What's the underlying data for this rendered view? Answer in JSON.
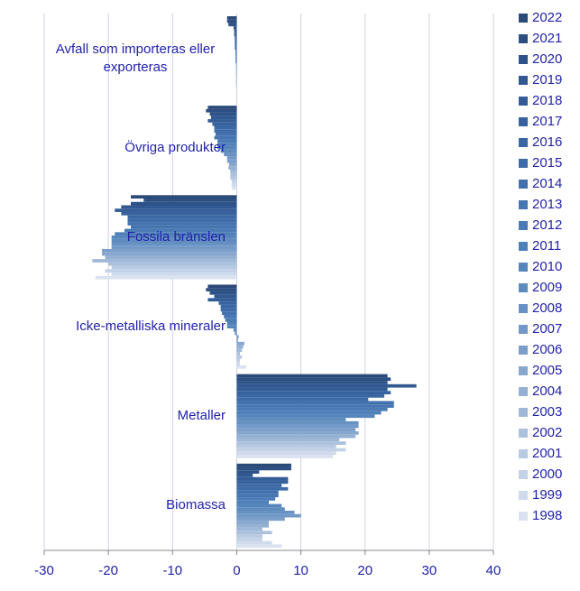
{
  "chart_data": {
    "type": "bar",
    "orientation": "horizontal",
    "categories": [
      "Avfall som importeras eller exporteras",
      "Övriga produkter",
      "Fossila bränslen",
      "Icke-metalliska mineraler",
      "Metaller",
      "Biomassa"
    ],
    "xlim": [
      -30,
      40
    ],
    "xticks": [
      -30,
      -20,
      -10,
      0,
      10,
      20,
      30,
      40
    ],
    "grid": true,
    "legend": "right",
    "series": [
      {
        "name": "2022",
        "color": "#2a4a78",
        "values": [
          -1.5,
          -4.5,
          -16.5,
          -4.5,
          23.5,
          8.5
        ]
      },
      {
        "name": "2021",
        "color": "#2c4e80",
        "values": [
          -1.5,
          -4.8,
          -14.5,
          -4.8,
          24,
          8.5
        ]
      },
      {
        "name": "2020",
        "color": "#2e5388",
        "values": [
          -1.3,
          -4.2,
          -16.5,
          -4.2,
          23.5,
          3.5
        ]
      },
      {
        "name": "2019",
        "color": "#315890",
        "values": [
          -0.5,
          -4,
          -18,
          -3.5,
          28,
          2.5
        ]
      },
      {
        "name": "2018",
        "color": "#345d97",
        "values": [
          -0.4,
          -4.5,
          -19,
          -4.5,
          23.5,
          8
        ]
      },
      {
        "name": "2017",
        "color": "#37629d",
        "values": [
          -0.4,
          -3.8,
          -18,
          -2.8,
          24,
          8
        ]
      },
      {
        "name": "2016",
        "color": "#3b67a3",
        "values": [
          -0.3,
          -3.5,
          -17,
          -2.5,
          23,
          7
        ]
      },
      {
        "name": "2015",
        "color": "#3e6ca8",
        "values": [
          -0.3,
          -3.5,
          -17,
          -2.5,
          20.5,
          8
        ]
      },
      {
        "name": "2014",
        "color": "#4271ad",
        "values": [
          -0.3,
          -3.3,
          -17,
          -2.3,
          24.5,
          6.5
        ]
      },
      {
        "name": "2013",
        "color": "#4676b1",
        "values": [
          -0.3,
          -3.5,
          -16.5,
          -2,
          24.5,
          6.5
        ]
      },
      {
        "name": "2012",
        "color": "#4b7bb5",
        "values": [
          -0.2,
          -3,
          -17.5,
          -1.8,
          23.5,
          6
        ]
      },
      {
        "name": "2011",
        "color": "#5080b8",
        "values": [
          -0.2,
          -3,
          -19,
          -1.5,
          22.5,
          5
        ]
      },
      {
        "name": "2010",
        "color": "#5685bb",
        "values": [
          -0.2,
          -3,
          -19.5,
          -1.5,
          21.5,
          7
        ]
      },
      {
        "name": "2009",
        "color": "#5e8bbe",
        "values": [
          -0.2,
          -2.5,
          -19.5,
          -0.5,
          17,
          7.5
        ]
      },
      {
        "name": "2008",
        "color": "#6791c2",
        "values": [
          -0.1,
          -2,
          -19.5,
          -0.3,
          19,
          9
        ]
      },
      {
        "name": "2007",
        "color": "#7198c6",
        "values": [
          -0.1,
          -1.5,
          -19.5,
          0.3,
          19,
          10
        ]
      },
      {
        "name": "2006",
        "color": "#7c9fca",
        "values": [
          -0.1,
          -1.5,
          -21,
          0.2,
          18.5,
          7.5
        ]
      },
      {
        "name": "2005",
        "color": "#88a7ce",
        "values": [
          -0.1,
          -1.2,
          -21,
          1.2,
          19,
          5
        ]
      },
      {
        "name": "2004",
        "color": "#94b0d3",
        "values": [
          -0.1,
          -1.3,
          -20.5,
          1,
          18.5,
          5
        ]
      },
      {
        "name": "2003",
        "color": "#a0b8d8",
        "values": [
          -0.1,
          -1,
          -22.5,
          0.8,
          16,
          4
        ]
      },
      {
        "name": "2002",
        "color": "#acc1dd",
        "values": [
          -0.1,
          -1,
          -20,
          0.5,
          17,
          5.5
        ]
      },
      {
        "name": "2001",
        "color": "#b8cae2",
        "values": [
          0,
          -1,
          -19.5,
          0.8,
          15.5,
          4
        ]
      },
      {
        "name": "2000",
        "color": "#c4d2e7",
        "values": [
          0,
          -0.8,
          -20.5,
          0.5,
          17,
          4
        ]
      },
      {
        "name": "1999",
        "color": "#cfdaec",
        "values": [
          0,
          -0.8,
          -19.5,
          0.5,
          15.5,
          5.5
        ]
      },
      {
        "name": "1998",
        "color": "#dae2ef",
        "values": [
          0,
          -0.8,
          -22,
          1.5,
          15,
          7
        ]
      }
    ]
  }
}
